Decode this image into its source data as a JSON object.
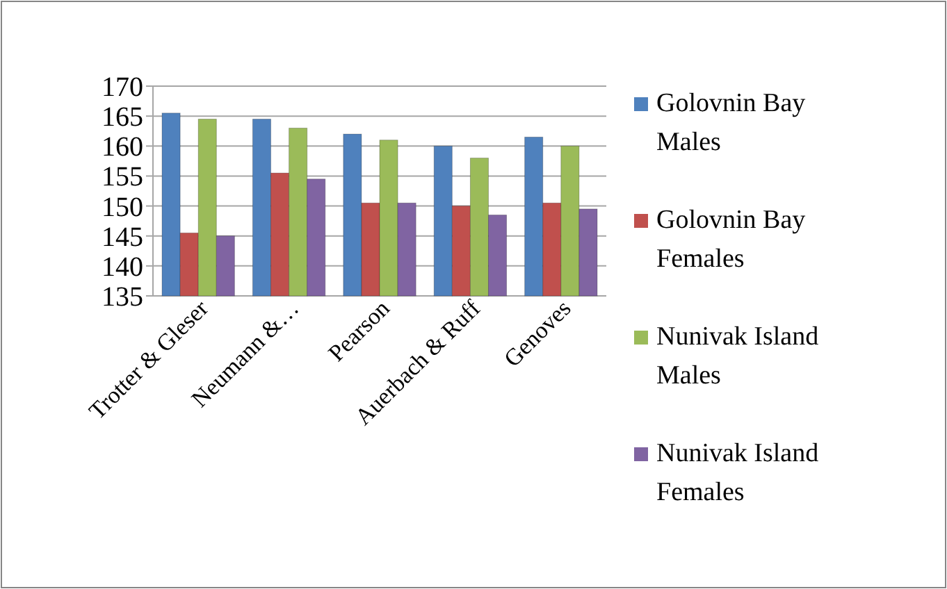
{
  "chart_data": {
    "type": "bar",
    "categories": [
      "Trotter & Gleser",
      "Neumann &…",
      "Pearson",
      "Auerbach & Ruff",
      "Genoves"
    ],
    "series": [
      {
        "name": "Golovnin Bay Males",
        "color": "#4f81bd",
        "values": [
          165.5,
          164.5,
          162,
          160,
          161.5
        ]
      },
      {
        "name": "Golovnin Bay Females",
        "color": "#c0504d",
        "values": [
          145.5,
          155.5,
          150.5,
          150,
          150.5
        ]
      },
      {
        "name": "Nunivak Island Males",
        "color": "#9bbb59",
        "values": [
          164.5,
          163,
          161,
          158,
          160
        ]
      },
      {
        "name": "Nunivak Island Females",
        "color": "#8064a2",
        "values": [
          145,
          154.5,
          150.5,
          148.5,
          149.5
        ]
      }
    ],
    "ylim": [
      135,
      170
    ],
    "yticks": [
      135,
      140,
      145,
      150,
      155,
      160,
      165,
      170
    ],
    "grid": "y",
    "legend": "right"
  }
}
